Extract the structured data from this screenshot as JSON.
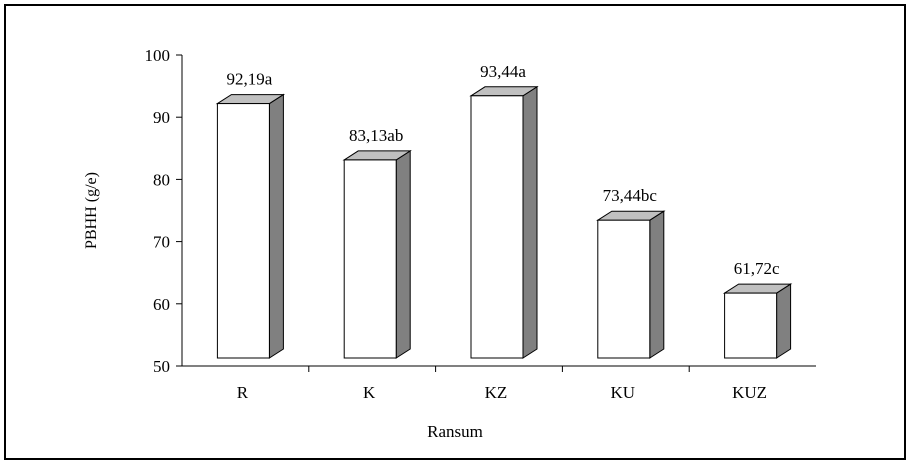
{
  "chart_data": {
    "type": "bar",
    "style": "3d-column",
    "categories": [
      "R",
      "K",
      "KZ",
      "KU",
      "KUZ"
    ],
    "values": [
      92.19,
      83.13,
      93.44,
      73.44,
      61.72
    ],
    "data_labels": [
      "92,19a",
      "83,13ab",
      "93,44a",
      "73,44bc",
      "61,72c"
    ],
    "xlabel": "Ransum",
    "ylabel": "PBHH (g/e)",
    "ylim": [
      50,
      100
    ],
    "yticks": [
      50,
      60,
      70,
      80,
      90,
      100
    ],
    "grid": false,
    "legend": "none",
    "colors": {
      "bar_front": "#ffffff",
      "bar_side": "#808080",
      "bar_top": "#c0c0c0",
      "axis": "#000000"
    }
  }
}
